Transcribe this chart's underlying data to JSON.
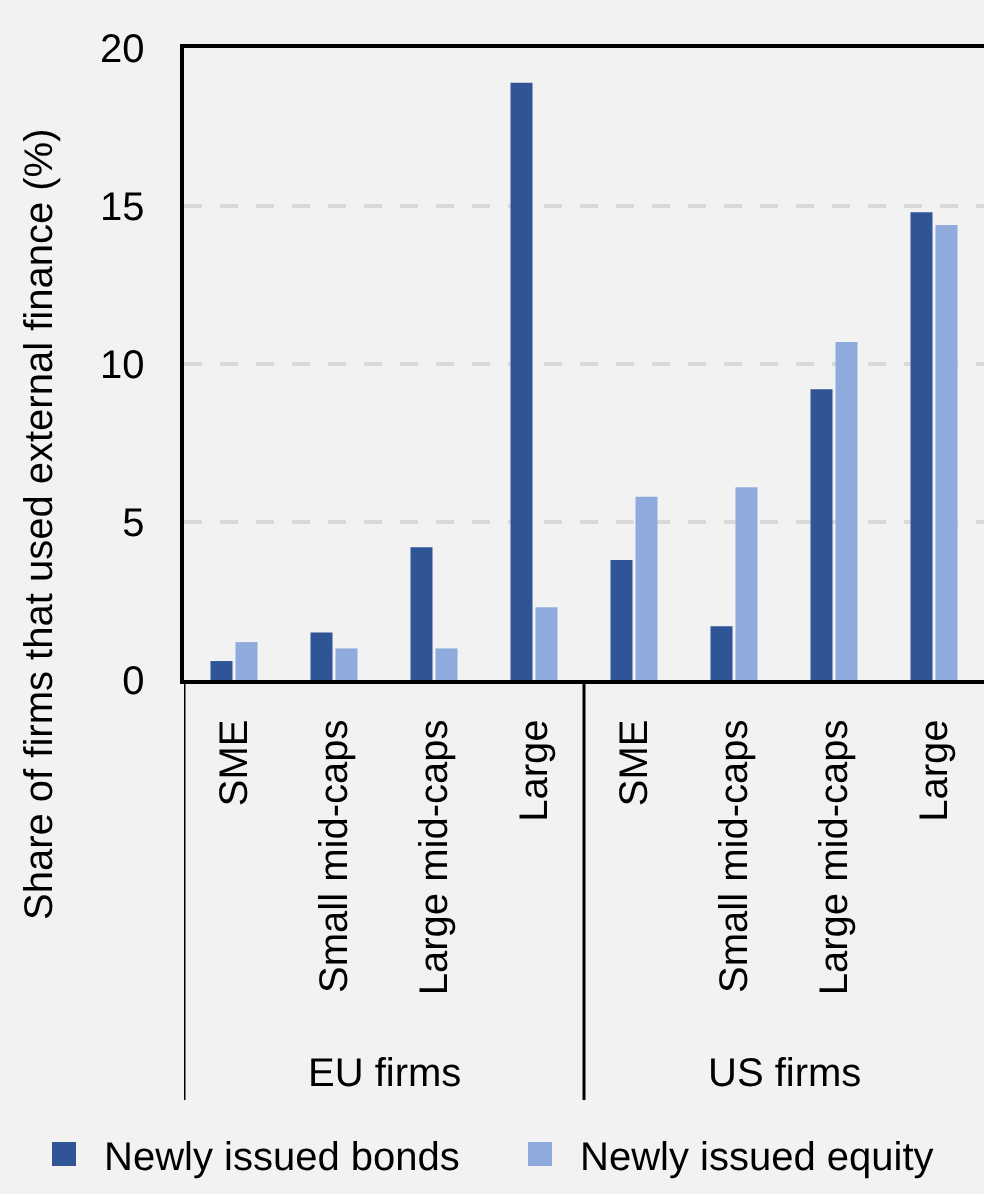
{
  "chart_data": {
    "type": "bar",
    "ylabel": "Share of firms that used external finance (%)",
    "categories": [
      "SME",
      "Small mid-caps",
      "Large mid-caps",
      "Large",
      "SME",
      "Small mid-caps",
      "Large mid-caps",
      "Large"
    ],
    "series": [
      {
        "name": "Newly issued bonds",
        "color": "#2f5597",
        "values": [
          0.6,
          1.5,
          4.2,
          18.9,
          3.8,
          1.7,
          9.2,
          14.8
        ]
      },
      {
        "name": "Newly issued equity",
        "color": "#8faadc",
        "values": [
          1.2,
          1.0,
          1.0,
          2.3,
          5.8,
          6.1,
          10.7,
          14.4
        ]
      }
    ],
    "annotations": [
      "EU firms",
      "US firms"
    ],
    "ylim": [
      0,
      20
    ],
    "yticks": [
      0,
      5,
      10,
      15,
      20
    ],
    "grid": "y",
    "legend": "bottom"
  }
}
